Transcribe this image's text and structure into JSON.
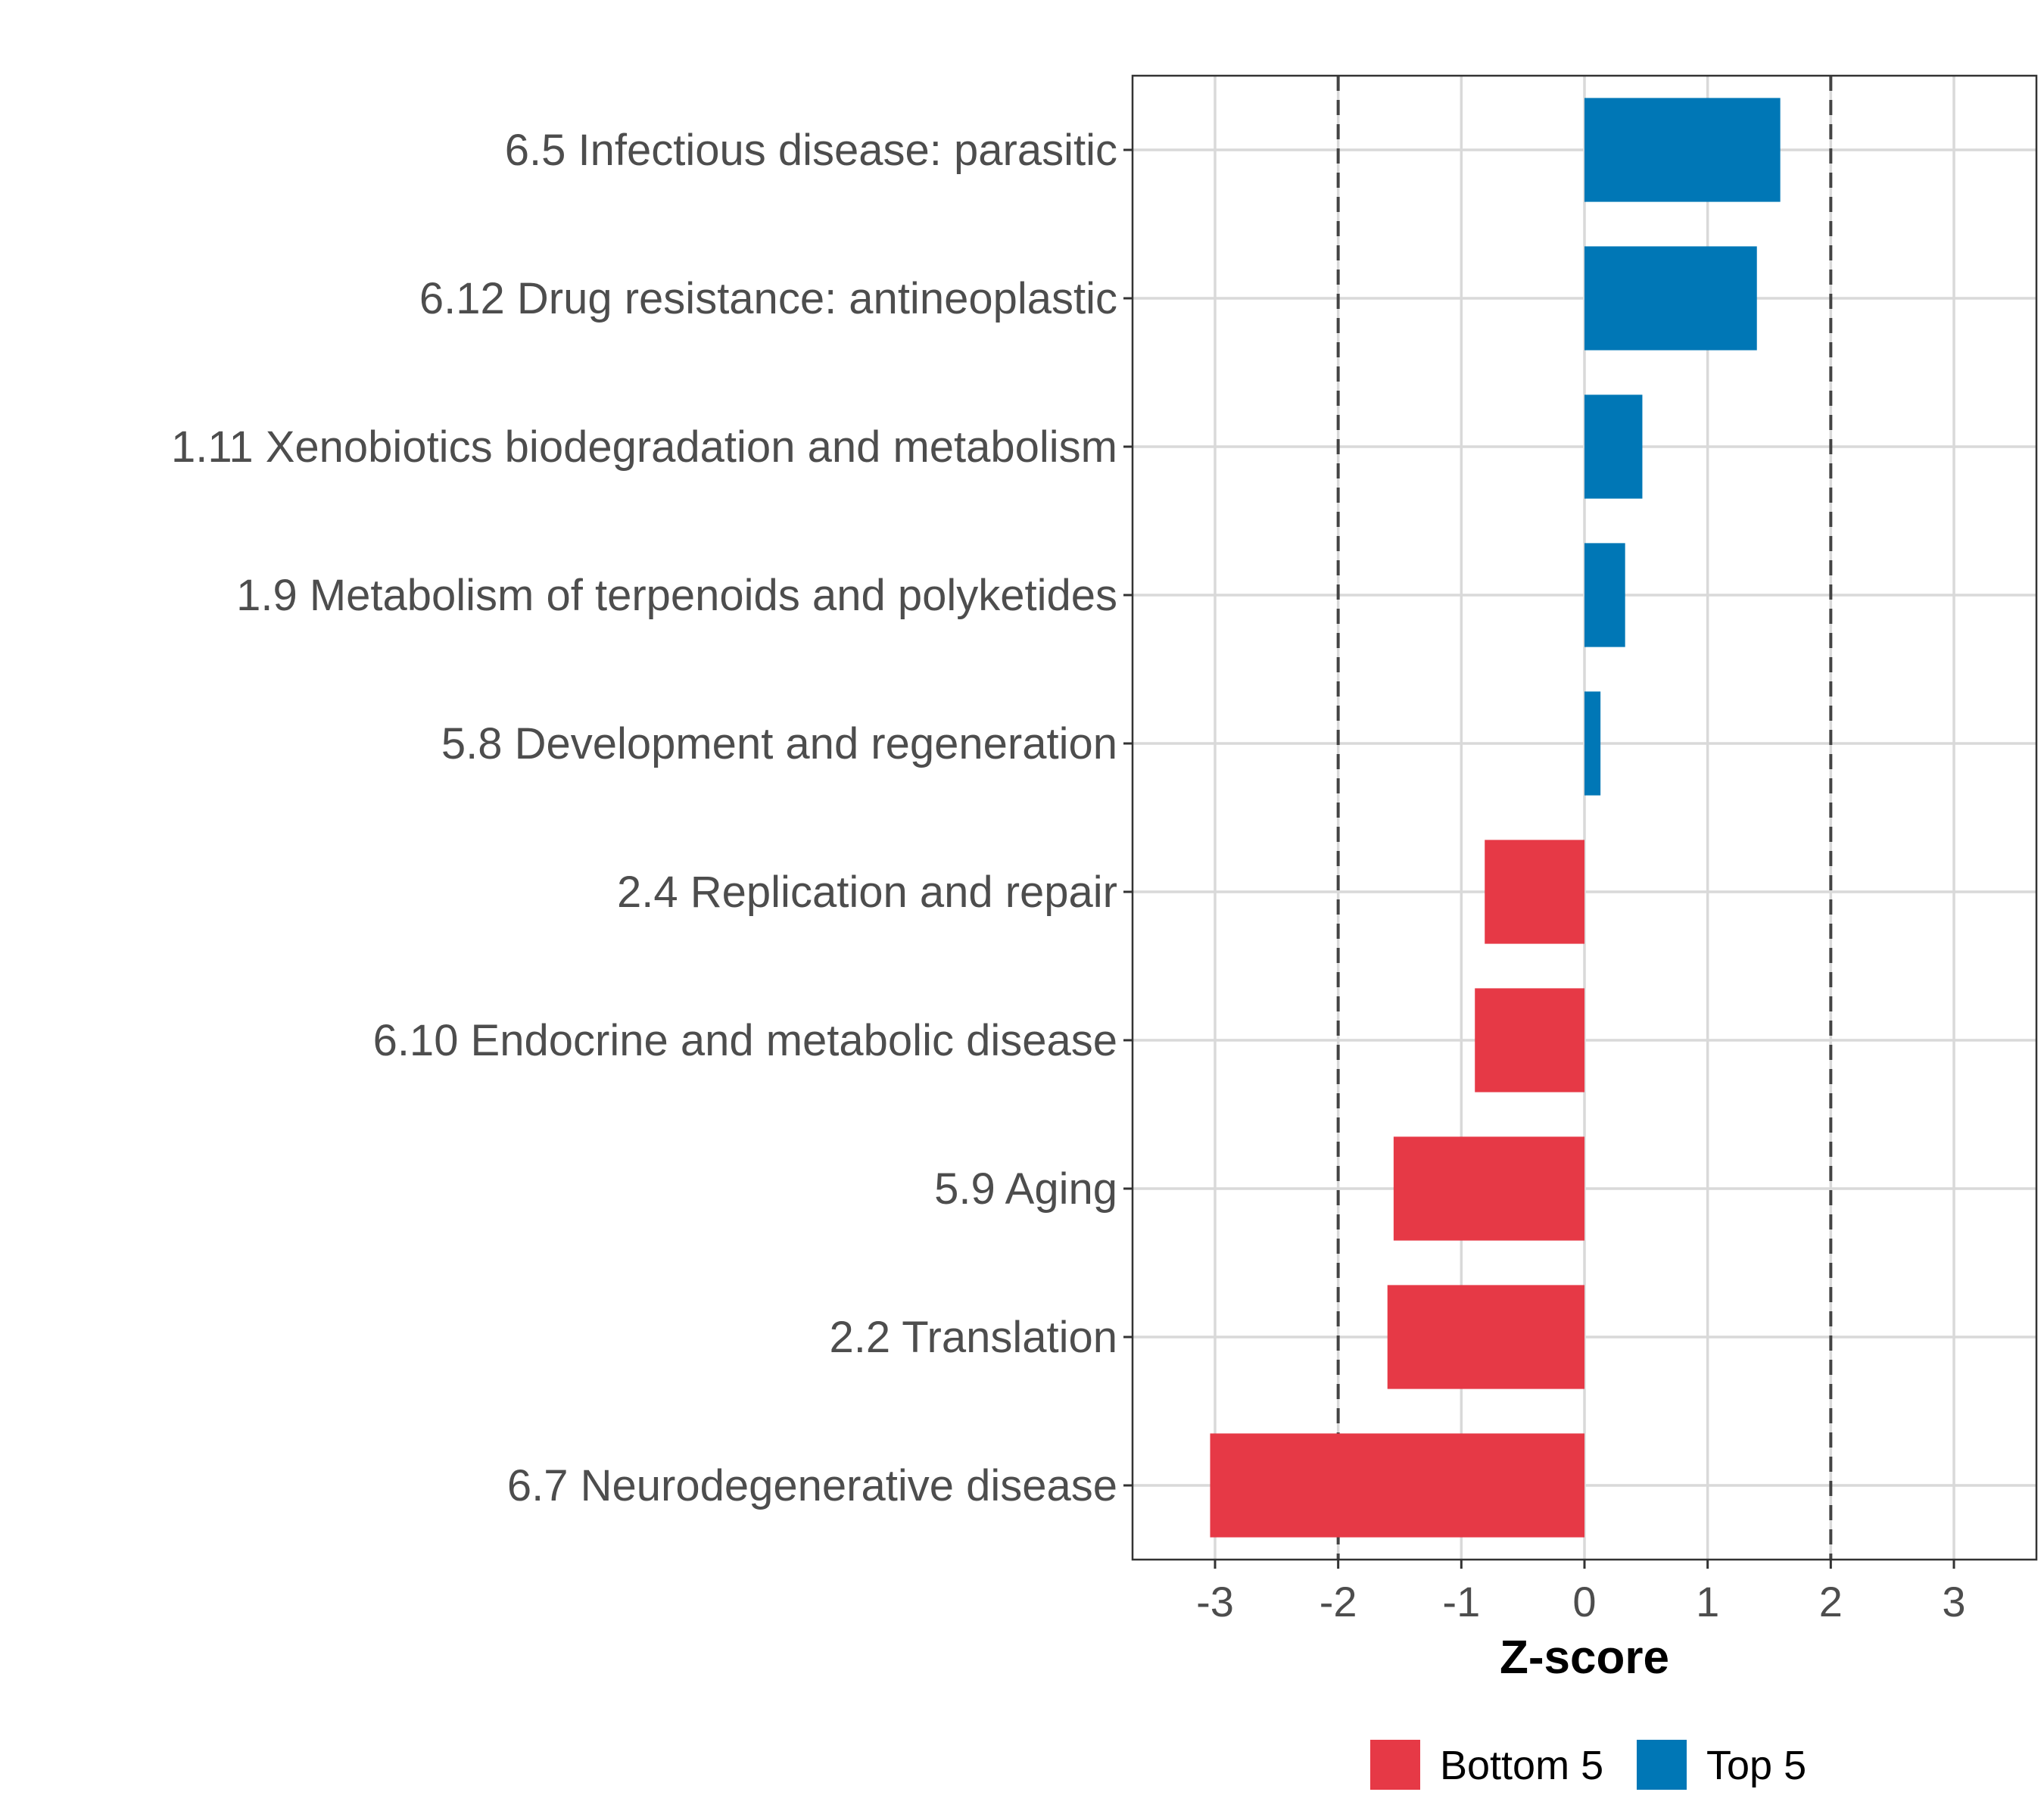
{
  "chart_data": {
    "type": "bar",
    "orientation": "horizontal",
    "categories": [
      "6.5 Infectious disease: parasitic",
      "6.12 Drug resistance: antineoplastic",
      "1.11 Xenobiotics biodegradation and metabolism",
      "1.9 Metabolism of terpenoids and polyketides",
      "5.8 Development and regeneration",
      "2.4 Replication and repair",
      "6.10 Endocrine and metabolic disease",
      "5.9 Aging",
      "2.2 Translation",
      "6.7 Neurodegenerative disease"
    ],
    "values": [
      1.59,
      1.4,
      0.47,
      0.33,
      0.13,
      -0.81,
      -0.89,
      -1.55,
      -1.6,
      -3.04
    ],
    "groups": [
      "Top 5",
      "Top 5",
      "Top 5",
      "Top 5",
      "Top 5",
      "Bottom 5",
      "Bottom 5",
      "Bottom 5",
      "Bottom 5",
      "Bottom 5"
    ],
    "xlabel": "Z-score",
    "ylabel": "",
    "xlim": [
      -3.67,
      3.67
    ],
    "xticks": [
      -3,
      -2,
      -1,
      0,
      1,
      2,
      3
    ],
    "xtick_labels": [
      "-3",
      "-2",
      "-1",
      "0",
      "1",
      "2",
      "3"
    ],
    "reference_lines": [
      -2,
      2
    ],
    "grid": true,
    "legend": {
      "placement": "bottom",
      "entries": [
        {
          "label": "Bottom 5",
          "color": "#E63946"
        },
        {
          "label": "Top 5",
          "color": "#0077B6"
        }
      ]
    }
  }
}
